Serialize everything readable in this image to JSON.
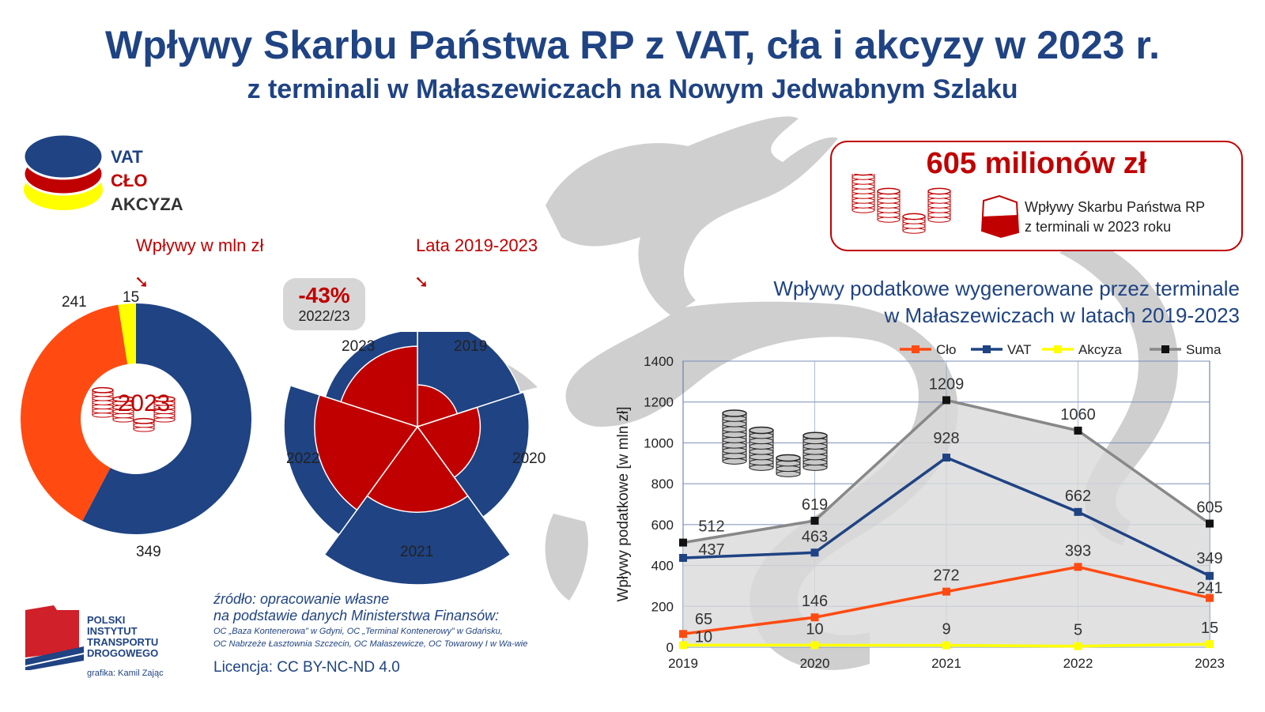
{
  "header": {
    "title": "Wpływy Skarbu Państwa RP z VAT, cła i akcyzy w 2023 r.",
    "subtitle": "z terminali w Małaszewiczach na Nowym Jedwabnym Szlaku"
  },
  "legend": {
    "vat": "VAT",
    "clo": "CŁO",
    "akcyza": "AKCYZA",
    "colors": {
      "vat": "#1f4383",
      "clo": "#c00000",
      "akcyza": "#ffff00"
    }
  },
  "donut": {
    "caption": "Wpływy w mln zł",
    "center_year": "2023",
    "values": {
      "vat": 349,
      "clo": 241,
      "akcyza": 15
    },
    "labels": {
      "vat": "349",
      "clo": "241",
      "akcyza": "15"
    },
    "colors": {
      "vat": "#1f4383",
      "clo": "#ff4b12",
      "akcyza": "#ffff00"
    }
  },
  "polar": {
    "caption": "Lata 2019-2023",
    "badge_pct": "-43%",
    "badge_years": "2022/23",
    "years": [
      "2019",
      "2020",
      "2021",
      "2022",
      "2023"
    ],
    "vat": [
      437,
      463,
      928,
      662,
      349
    ],
    "clo": [
      65,
      146,
      272,
      393,
      241
    ]
  },
  "infobox": {
    "amount": "605 milionów zł",
    "desc_line1": "Wpływy Skarbu Państwa RP",
    "desc_line2": "z terminali w 2023 roku"
  },
  "line_chart": {
    "title_line1": "Wpływy podatkowe wygenerowane przez terminale",
    "title_line2": "w Małaszewiczach w latach 2019-2023"
  },
  "chart_data": {
    "type": "line",
    "x": [
      "2019",
      "2020",
      "2021",
      "2022",
      "2023"
    ],
    "ylabel": "Wpływy podatkowe [w mln zł]",
    "ylim": [
      0,
      1400
    ],
    "yticks": [
      0,
      200,
      400,
      600,
      800,
      1000,
      1200,
      1400
    ],
    "grid": true,
    "legend_position": "top",
    "series": [
      {
        "name": "Cło",
        "color": "#ff4b12",
        "values": [
          65,
          146,
          272,
          393,
          241
        ]
      },
      {
        "name": "VAT",
        "color": "#1f4383",
        "values": [
          437,
          463,
          928,
          662,
          349
        ]
      },
      {
        "name": "Akcyza",
        "color": "#ffff00",
        "values": [
          10,
          10,
          9,
          5,
          15
        ]
      },
      {
        "name": "Suma",
        "color": "#888888",
        "values": [
          512,
          619,
          1209,
          1060,
          605
        ]
      }
    ]
  },
  "source": {
    "line1": "źródło: opracowanie własne",
    "line2": "na podstawie danych Ministerstwa Finansów:",
    "line3": "OC „Baza Kontenerowa” w Gdyni, OC „Terminal Kontenerowy” w Gdańsku,",
    "line4": "OC Nabrzeże Łasztownia Szczecin, OC Małaszewicze, OC Towarowy I w Wa-wie",
    "license": "Licencja: CC BY-NC-ND 4.0"
  },
  "logo": {
    "line1": "POLSKI",
    "line2": "INSTYTUT",
    "line3": "TRANSPORTU",
    "line4": "DROGOWEGO",
    "credit": "grafika: Kamil Zając"
  }
}
